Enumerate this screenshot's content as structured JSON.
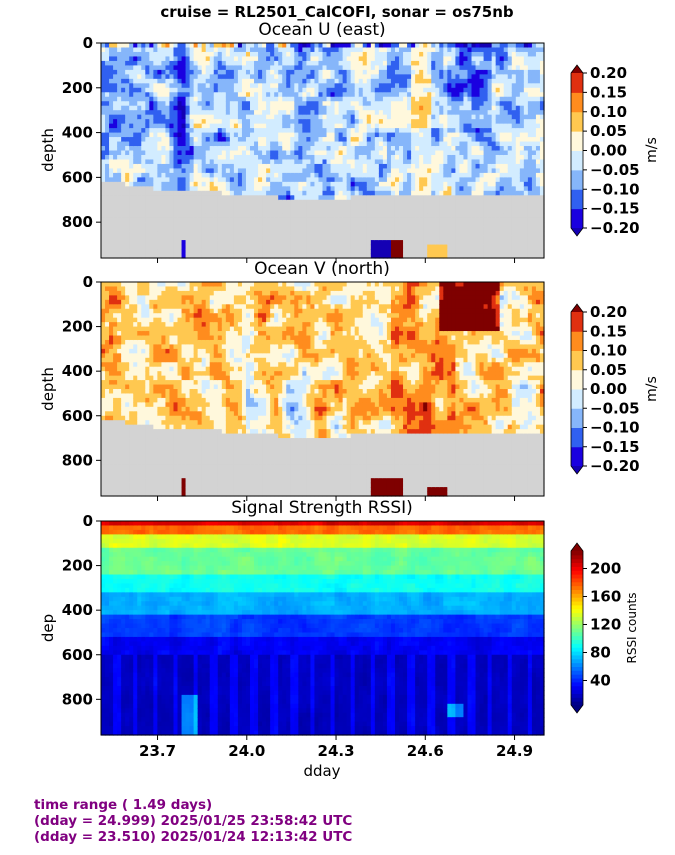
{
  "title": "cruise = RL2501_CalCOFI,  sonar = os75nb",
  "x_label": "dday",
  "x_ticks": [
    "23.7",
    "24.0",
    "24.3",
    "24.6",
    "24.9"
  ],
  "footer": {
    "line1": "time range ( 1.49 days)",
    "line2": "(dday = 24.999) 2025/01/25 23:58:42 UTC",
    "line3": "(dday = 23.510) 2025/01/24 12:13:42 UTC"
  },
  "colors": {
    "nodata": "#d3d3d3",
    "div_levels": [
      "#1a00e0",
      "#3060f0",
      "#86b6fa",
      "#d2ecff",
      "#fff8dc",
      "#ffc850",
      "#ff8c1e",
      "#e03010"
    ],
    "div_under": "#1400b4",
    "div_over": "#7f0000"
  },
  "chart_data": [
    {
      "type": "heatmap",
      "title": "Ocean U (east)",
      "ylabel": "depth",
      "cbar_label": "m/s",
      "xlim": [
        23.51,
        24.999
      ],
      "ylim": [
        960,
        0
      ],
      "y_ticks": [
        "0",
        "200",
        "400",
        "600",
        "800"
      ],
      "cbar_ticks": [
        "0.20",
        "0.15",
        "0.10",
        "0.05",
        "0.00",
        "−0.05",
        "−0.10",
        "−0.15",
        "−0.20"
      ],
      "clim": [
        -0.2,
        0.2
      ],
      "grid": false
    },
    {
      "type": "heatmap",
      "title": "Ocean V (north)",
      "ylabel": "depth",
      "cbar_label": "m/s",
      "xlim": [
        23.51,
        24.999
      ],
      "ylim": [
        960,
        0
      ],
      "y_ticks": [
        "0",
        "200",
        "400",
        "600",
        "800"
      ],
      "cbar_ticks": [
        "0.20",
        "0.15",
        "0.10",
        "0.05",
        "0.00",
        "−0.05",
        "−0.10",
        "−0.15",
        "−0.20"
      ],
      "clim": [
        -0.2,
        0.2
      ],
      "grid": false
    },
    {
      "type": "heatmap",
      "title": "Signal Strength RSSI)",
      "ylabel": "dep",
      "cbar_label": "RSSI counts",
      "xlim": [
        23.51,
        24.999
      ],
      "ylim": [
        960,
        0
      ],
      "y_ticks": [
        "0",
        "200",
        "400",
        "600",
        "800"
      ],
      "cbar_ticks": [
        "200",
        "160",
        "120",
        "80",
        "40"
      ],
      "clim": [
        5,
        225
      ],
      "grid": false
    }
  ]
}
